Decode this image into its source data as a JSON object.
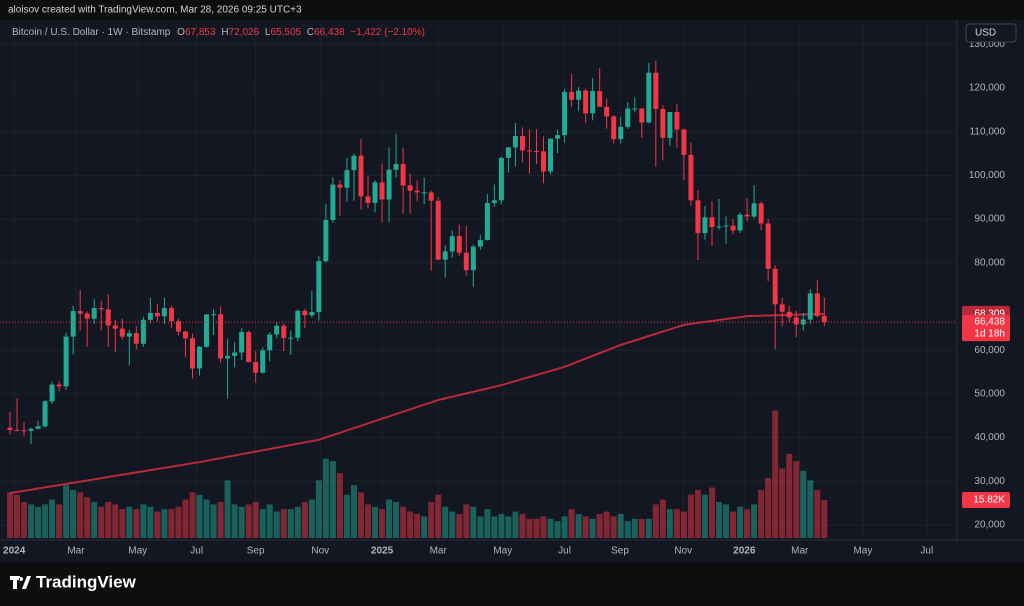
{
  "credit": "aloisov created with TradingView.com, Mar 28, 2026 09:25 UTC+3",
  "brand": "TradingView",
  "chart_data": {
    "type": "candlestick",
    "title": "Bitcoin / U.S. Dollar · 1W · Bitstamp",
    "ohlc": {
      "o_key": "O",
      "o": "67,853",
      "h_key": "H",
      "h": "72,026",
      "l_key": "L",
      "l": "65,505",
      "c_key": "C",
      "c": "66,438",
      "change": "−1,422 (−2.10%)"
    },
    "currency": "USD",
    "ma_label": "68,309",
    "last_label": "66,438",
    "countdown": "1d 18h",
    "volume_label": "15.82K",
    "up_color": "#22ab94",
    "down_color": "#f23645",
    "ma_color": "#b8293a",
    "grid": true,
    "xlim": [
      -1.42,
      134.9
    ],
    "xticks": [
      {
        "value": 0.6,
        "label": "2024"
      },
      {
        "value": 9.4,
        "label": "Mar"
      },
      {
        "value": 18.2,
        "label": "May"
      },
      {
        "value": 26.6,
        "label": "Jul"
      },
      {
        "value": 35,
        "label": "Sep"
      },
      {
        "value": 44.2,
        "label": "Nov"
      },
      {
        "value": 53,
        "label": "2025"
      },
      {
        "value": 61,
        "label": "Mar"
      },
      {
        "value": 70.2,
        "label": "May"
      },
      {
        "value": 79,
        "label": "Jul"
      },
      {
        "value": 86.9,
        "label": "Sep"
      },
      {
        "value": 95.9,
        "label": "Nov"
      },
      {
        "value": 104.6,
        "label": "2026"
      },
      {
        "value": 112.5,
        "label": "Mar"
      },
      {
        "value": 121.5,
        "label": "May"
      },
      {
        "value": 130.6,
        "label": "Jul"
      }
    ],
    "ylim": [
      16570,
      135100
    ],
    "yticks": [
      {
        "value": 20000,
        "label": "20,000"
      },
      {
        "value": 30000,
        "label": "30,000"
      },
      {
        "value": 40000,
        "label": "40,000"
      },
      {
        "value": 50000,
        "label": "50,000"
      },
      {
        "value": 60000,
        "label": "60,000"
      },
      {
        "value": 80000,
        "label": "80,000"
      },
      {
        "value": 90000,
        "label": "90,000"
      },
      {
        "value": 100000,
        "label": "100,000"
      },
      {
        "value": 110000,
        "label": "110,000"
      },
      {
        "value": 120000,
        "label": "120,000"
      },
      {
        "value": 130000,
        "label": "130,000"
      }
    ],
    "vlim": [
      0,
      215.6
    ],
    "candles": [
      [
        42280,
        45900,
        40750,
        41730
      ],
      [
        41730,
        48970,
        41500,
        41690
      ],
      [
        41690,
        43570,
        40280,
        41580
      ],
      [
        41580,
        42250,
        38500,
        42030
      ],
      [
        42030,
        43880,
        41880,
        42580
      ],
      [
        42580,
        48590,
        42260,
        48300
      ],
      [
        48300,
        52800,
        47700,
        52140
      ],
      [
        52140,
        52980,
        50600,
        51730
      ],
      [
        51730,
        64000,
        50900,
        63120
      ],
      [
        63120,
        70170,
        59000,
        68950
      ],
      [
        68950,
        73800,
        64500,
        68390
      ],
      [
        68390,
        68900,
        60800,
        67210
      ],
      [
        67210,
        71770,
        66000,
        69630
      ],
      [
        69630,
        71300,
        64500,
        69360
      ],
      [
        69360,
        72800,
        60700,
        65660
      ],
      [
        65660,
        66900,
        59600,
        64940
      ],
      [
        64940,
        67200,
        62400,
        63110
      ],
      [
        63110,
        64700,
        56500,
        63900
      ],
      [
        63900,
        65500,
        60200,
        61470
      ],
      [
        61470,
        67700,
        60800,
        66940
      ],
      [
        66940,
        71950,
        66100,
        68520
      ],
      [
        68520,
        70600,
        66600,
        67760
      ],
      [
        67760,
        71950,
        66100,
        69640
      ],
      [
        69640,
        70200,
        65000,
        66650
      ],
      [
        66650,
        67200,
        63400,
        64250
      ],
      [
        64250,
        64500,
        58400,
        62730
      ],
      [
        62730,
        63800,
        53500,
        55840
      ],
      [
        55840,
        61000,
        54200,
        60800
      ],
      [
        60800,
        68300,
        60500,
        68160
      ],
      [
        68160,
        69400,
        63500,
        68250
      ],
      [
        68250,
        70000,
        57100,
        58120
      ],
      [
        58120,
        62700,
        49000,
        58700
      ],
      [
        58700,
        61800,
        56100,
        59480
      ],
      [
        59480,
        65000,
        57800,
        64160
      ],
      [
        64160,
        64500,
        57200,
        57300
      ],
      [
        57300,
        59800,
        52550,
        54840
      ],
      [
        54840,
        60600,
        54600,
        59990
      ],
      [
        59990,
        64100,
        57500,
        63580
      ],
      [
        63580,
        66500,
        62700,
        65600
      ],
      [
        65600,
        66100,
        59800,
        62820
      ],
      [
        62820,
        64500,
        58900,
        62850
      ],
      [
        62850,
        69400,
        62100,
        69000
      ],
      [
        69000,
        69500,
        65100,
        68000
      ],
      [
        68000,
        73600,
        67500,
        68750
      ],
      [
        68750,
        81500,
        66800,
        80400
      ],
      [
        80400,
        93500,
        80000,
        89800
      ],
      [
        89800,
        99600,
        89100,
        97900
      ],
      [
        97900,
        98900,
        90800,
        97200
      ],
      [
        97200,
        104000,
        94000,
        101200
      ],
      [
        101200,
        105000,
        94200,
        104500
      ],
      [
        104500,
        108300,
        92200,
        95200
      ],
      [
        95200,
        99900,
        92500,
        93700
      ],
      [
        93700,
        98900,
        91500,
        98400
      ],
      [
        98400,
        102700,
        89200,
        94500
      ],
      [
        94500,
        106400,
        89300,
        101300
      ],
      [
        101300,
        109500,
        99500,
        102600
      ],
      [
        102600,
        106400,
        91200,
        97700
      ],
      [
        97700,
        100400,
        91200,
        96500
      ],
      [
        96500,
        98800,
        94100,
        96100
      ],
      [
        96100,
        99500,
        93400,
        96100
      ],
      [
        96100,
        96500,
        78200,
        94200
      ],
      [
        94200,
        95000,
        81500,
        80700
      ],
      [
        80700,
        84000,
        76600,
        82600
      ],
      [
        82600,
        87400,
        81200,
        86100
      ],
      [
        86100,
        88700,
        81600,
        82300
      ],
      [
        82300,
        88500,
        77100,
        78300
      ],
      [
        78300,
        84200,
        74500,
        83700
      ],
      [
        83700,
        86400,
        83000,
        85200
      ],
      [
        85200,
        95700,
        85100,
        93700
      ],
      [
        93700,
        97900,
        92800,
        94300
      ],
      [
        94300,
        104300,
        93400,
        104000
      ],
      [
        104000,
        106400,
        100700,
        106400
      ],
      [
        106400,
        112000,
        102000,
        109000
      ],
      [
        109000,
        111000,
        103000,
        105700
      ],
      [
        105700,
        110500,
        100400,
        105600
      ],
      [
        105600,
        110600,
        102600,
        105500
      ],
      [
        105500,
        108900,
        98200,
        100900
      ],
      [
        100900,
        108500,
        100200,
        108400
      ],
      [
        108400,
        110500,
        105100,
        109200
      ],
      [
        109200,
        119800,
        107500,
        119100
      ],
      [
        119100,
        123200,
        115700,
        117300
      ],
      [
        117300,
        120200,
        114700,
        119400
      ],
      [
        119400,
        119800,
        112000,
        114200
      ],
      [
        114200,
        122300,
        112600,
        119300
      ],
      [
        119300,
        124500,
        116800,
        115700
      ],
      [
        115700,
        117600,
        110700,
        113500
      ],
      [
        113500,
        113700,
        107300,
        108300
      ],
      [
        108300,
        113400,
        107300,
        111100
      ],
      [
        111100,
        116800,
        110600,
        115300
      ],
      [
        115300,
        117900,
        114400,
        115300
      ],
      [
        115300,
        115400,
        108600,
        112100
      ],
      [
        112100,
        125700,
        111900,
        123500
      ],
      [
        123500,
        126200,
        102000,
        115200
      ],
      [
        115200,
        116000,
        103500,
        108600
      ],
      [
        108600,
        114500,
        106700,
        114500
      ],
      [
        114500,
        116400,
        106300,
        110500
      ],
      [
        110500,
        110700,
        98900,
        104700
      ],
      [
        104700,
        107500,
        93000,
        94300
      ],
      [
        94300,
        96600,
        80600,
        86800
      ],
      [
        86800,
        93000,
        85300,
        90400
      ],
      [
        90400,
        94100,
        83800,
        88200
      ],
      [
        88200,
        94600,
        87600,
        88300
      ],
      [
        88300,
        90600,
        84400,
        88500
      ],
      [
        88500,
        90000,
        86500,
        87400
      ],
      [
        87400,
        91500,
        86800,
        91000
      ],
      [
        91000,
        94800,
        89500,
        90600
      ],
      [
        90600,
        97800,
        90200,
        93600
      ],
      [
        93600,
        94000,
        87500,
        89000
      ],
      [
        89000,
        90000,
        75800,
        78600
      ],
      [
        78600,
        79400,
        60200,
        70500
      ],
      [
        70500,
        72000,
        65500,
        68800
      ],
      [
        68800,
        70200,
        66500,
        67500
      ],
      [
        67500,
        69000,
        63000,
        65900
      ],
      [
        65900,
        68500,
        64500,
        67000
      ],
      [
        67000,
        74000,
        66000,
        73000
      ],
      [
        73000,
        76000,
        67500,
        67860
      ],
      [
        67853,
        72026,
        65505,
        66438
      ]
    ],
    "volume": [
      19,
      18,
      15,
      14,
      13,
      14,
      16,
      14,
      22,
      20,
      19,
      17,
      15,
      13,
      15,
      14,
      12,
      13,
      12,
      14,
      13,
      11,
      12,
      12,
      13,
      16,
      19,
      18,
      16,
      14,
      15,
      24,
      14,
      13,
      14,
      15,
      12,
      14,
      11,
      12,
      12,
      13,
      15,
      16,
      24,
      33,
      32,
      27,
      18,
      22,
      19,
      14,
      13,
      12,
      16,
      15,
      13,
      11,
      10,
      9,
      15,
      18,
      13,
      11,
      10,
      14,
      13,
      9,
      12,
      9,
      10,
      9,
      11,
      10,
      8,
      8,
      9,
      8,
      7,
      9,
      12,
      10,
      9,
      8,
      10,
      11,
      9,
      10,
      7,
      8,
      8,
      8,
      14,
      16,
      12,
      12,
      11,
      18,
      20,
      18,
      21,
      15,
      14,
      11,
      13,
      12,
      14,
      20,
      25,
      53,
      29,
      35,
      32,
      28,
      24,
      20,
      15.82
    ],
    "ma": [
      27300,
      27560,
      27830,
      28090,
      28350,
      28620,
      28880,
      29140,
      29400,
      29670,
      29930,
      30190,
      30460,
      30720,
      30980,
      31250,
      31510,
      31770,
      32030,
      32300,
      32560,
      32820,
      33090,
      33350,
      33610,
      33880,
      34140,
      34400,
      34700,
      35000,
      35300,
      35600,
      35900,
      36200,
      36500,
      36800,
      37100,
      37400,
      37700,
      38000,
      38300,
      38600,
      38900,
      39200,
      39500,
      40040,
      40570,
      41110,
      41640,
      42180,
      42710,
      43250,
      43780,
      44320,
      44850,
      45390,
      45920,
      46460,
      46990,
      47530,
      48060,
      48600,
      48980,
      49360,
      49730,
      50110,
      50490,
      50870,
      51240,
      51620,
      52000,
      52470,
      52930,
      53400,
      53870,
      54330,
      54800,
      55270,
      55730,
      56200,
      56830,
      57450,
      58080,
      58700,
      59330,
      59950,
      60580,
      61200,
      61710,
      62220,
      62730,
      63240,
      63760,
      64270,
      64780,
      65290,
      65800,
      66020,
      66240,
      66470,
      66690,
      66910,
      67130,
      67360,
      67580,
      67800,
      67850,
      67890,
      67940,
      67990,
      68030,
      68080,
      68120,
      68170,
      68220,
      68260,
      68309
    ]
  }
}
